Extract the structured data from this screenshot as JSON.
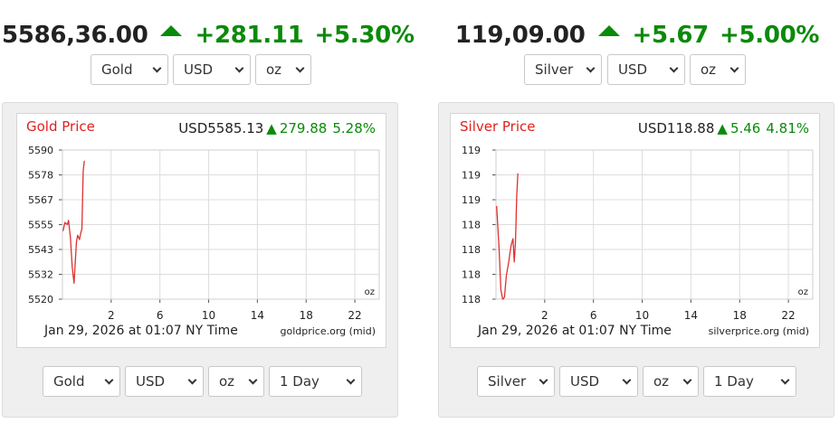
{
  "chart_data": [
    {
      "type": "line",
      "title": "Gold Price",
      "quote": {
        "currency_price": "USD5585.13",
        "change": "279.88",
        "percent": "5.28%"
      },
      "unit": "oz",
      "source": "goldprice.org (mid)",
      "timestamp": "Jan 29, 2026 at 01:07 NY Time",
      "x_ticks": [
        "2",
        "6",
        "10",
        "14",
        "18",
        "22"
      ],
      "y_ticks": [
        "5590",
        "5578",
        "5567",
        "5555",
        "5543",
        "5532",
        "5520"
      ],
      "xlim": [
        -2,
        24
      ],
      "ylim": [
        5520,
        5590
      ],
      "grid": true,
      "series": [
        {
          "color": "#e03030",
          "x": [
            -1.95,
            -1.8,
            -1.6,
            -1.5,
            -1.35,
            -1.2,
            -1.05,
            -0.95,
            -0.85,
            -0.75,
            -0.6,
            -0.5,
            -0.4,
            -0.3,
            -0.2
          ],
          "y": [
            5552,
            5556,
            5555,
            5557,
            5549,
            5535,
            5527.5,
            5537,
            5547,
            5550,
            5548,
            5551,
            5553,
            5580,
            5585
          ]
        }
      ]
    },
    {
      "type": "line",
      "title": "Silver Price",
      "quote": {
        "currency_price": "USD118.88",
        "change": "5.46",
        "percent": "4.81%"
      },
      "unit": "oz",
      "source": "silverprice.org (mid)",
      "timestamp": "Jan 29, 2026 at 01:07 NY Time",
      "x_ticks": [
        "2",
        "6",
        "10",
        "14",
        "18",
        "22"
      ],
      "y_ticks": [
        "119",
        "119",
        "119",
        "118",
        "118",
        "118",
        "118"
      ],
      "xlim": [
        -2,
        24
      ],
      "ylim": [
        117.7,
        119.3
      ],
      "grid": true,
      "series": [
        {
          "color": "#e03030",
          "x": [
            -1.95,
            -1.75,
            -1.6,
            -1.45,
            -1.3,
            -1.15,
            -0.95,
            -0.85,
            -0.75,
            -0.6,
            -0.5,
            -0.4,
            -0.3,
            -0.2
          ],
          "y": [
            118.7,
            118.25,
            117.8,
            117.7,
            117.72,
            117.95,
            118.1,
            118.2,
            118.28,
            118.35,
            118.1,
            118.3,
            118.8,
            119.05
          ]
        }
      ]
    }
  ],
  "gold": {
    "headline": {
      "price": "5586,36.00",
      "change": "+281.11",
      "percent": "+5.30%"
    },
    "top_selects": {
      "metal": "Gold",
      "currency": "USD",
      "unit": "oz"
    },
    "bottom_selects": {
      "metal": "Gold",
      "currency": "USD",
      "unit": "oz",
      "range": "1 Day"
    }
  },
  "silver": {
    "headline": {
      "price": "119,09.00",
      "change": "+5.67",
      "percent": "+5.00%"
    },
    "top_selects": {
      "metal": "Silver",
      "currency": "USD",
      "unit": "oz"
    },
    "bottom_selects": {
      "metal": "Silver",
      "currency": "USD",
      "unit": "oz",
      "range": "1 Day"
    }
  },
  "colors": {
    "up": "#0a8a0a",
    "title": "#e02020",
    "line": "#e03030",
    "grid": "#dddddd"
  },
  "icons": {
    "up_arrow": "triangle-up-icon",
    "select_chevron": "chevron-down-icon"
  }
}
